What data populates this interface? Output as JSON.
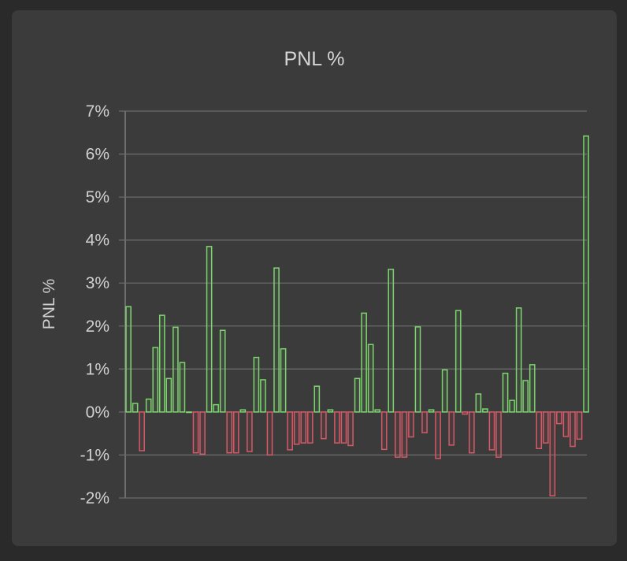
{
  "chart_data": {
    "type": "bar",
    "title": "PNL %",
    "ylabel": "PNL %",
    "xlabel": "",
    "ylim": [
      -2,
      7
    ],
    "yticks": [
      {
        "value": -2,
        "label": "-2%"
      },
      {
        "value": -1,
        "label": "-1%"
      },
      {
        "value": 0,
        "label": "0%"
      },
      {
        "value": 1,
        "label": "1%"
      },
      {
        "value": 2,
        "label": "2%"
      },
      {
        "value": 3,
        "label": "3%"
      },
      {
        "value": 4,
        "label": "4%"
      },
      {
        "value": 5,
        "label": "5%"
      },
      {
        "value": 6,
        "label": "6%"
      },
      {
        "value": 7,
        "label": "7%"
      }
    ],
    "grid": true,
    "colors": {
      "positive": "#7ed46f",
      "negative": "#d45a68"
    },
    "values": [
      2.45,
      0.2,
      -0.9,
      0.3,
      1.5,
      2.25,
      0.78,
      1.97,
      1.15,
      0,
      -0.95,
      -0.98,
      3.85,
      0.17,
      1.9,
      -0.95,
      -0.95,
      0.05,
      -0.92,
      1.27,
      0.75,
      -1.0,
      3.35,
      1.47,
      -0.88,
      -0.75,
      -0.72,
      -0.72,
      0.6,
      -0.62,
      0.05,
      -0.72,
      -0.72,
      -0.78,
      0.78,
      2.3,
      1.57,
      0.05,
      -0.87,
      3.32,
      -1.05,
      -1.05,
      -0.58,
      1.98,
      -0.48,
      0.05,
      -1.08,
      0.98,
      -0.77,
      2.36,
      -0.05,
      -0.95,
      0.42,
      0.07,
      -0.88,
      -1.05,
      0.9,
      0.27,
      2.42,
      0.73,
      1.1,
      -0.85,
      -0.72,
      -1.95,
      -0.27,
      -0.57,
      -0.8,
      -0.63,
      6.42
    ]
  }
}
